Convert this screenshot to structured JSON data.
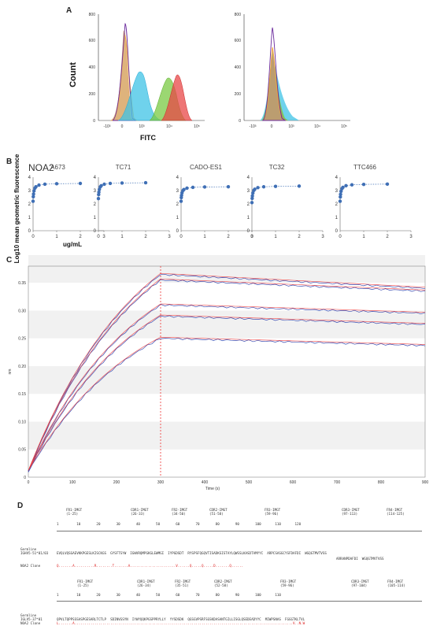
{
  "panel_labels": {
    "a": "A",
    "b": "B",
    "c": "C",
    "d": "D"
  },
  "panel_a": {
    "ylabel": "Count",
    "xlabel": "FITC",
    "left": {
      "yticks": [
        "0",
        "200",
        "400",
        "600",
        "800"
      ],
      "xticks": [
        "-10³",
        "0",
        "10³",
        "10⁴",
        "10⁵"
      ]
    },
    "right": {
      "yticks": [
        "0",
        "200",
        "400",
        "600",
        "800"
      ],
      "xticks": [
        "-10³",
        "0",
        "10³",
        "10⁴",
        "10⁵"
      ]
    }
  },
  "panel_b": {
    "antibody": "NOA2",
    "ylabel": "Log10 mean geometric fluorescence",
    "xlabel": "ug/mL",
    "yticks": [
      "0",
      "1",
      "2",
      "3",
      "4"
    ],
    "xticks": [
      "0",
      "1",
      "2",
      "3"
    ]
  },
  "panel_c": {
    "xlabel": "Time (s)",
    "ylabel": "nm",
    "yticks": [
      "0",
      "0.05",
      "0.10",
      "0.15",
      "0.20",
      "0.25",
      "0.30",
      "0.35"
    ],
    "xticks": [
      "0",
      "100",
      "200",
      "300",
      "400",
      "500",
      "600",
      "700",
      "800",
      "900"
    ]
  },
  "panel_d": {
    "block1": {
      "regions": [
        "FR1-IMGT\n(1-25)",
        "CDR1-IMGT\n(26-33)",
        "FR2-IMGT\n(34-50)",
        "CDR2-IMGT\n(51-58)",
        "FR3-IMGT\n(59-96)",
        "CDR3-IMGT\n(97-113)",
        "FR4-IMGT\n(114-125)"
      ],
      "ruler": "1         10        20        30        40        50        60        70        80        90        100       110       120",
      "germline_label": "Germline\nIGHV5-51*01/03",
      "germline_seq": "EVQLVQSGAEVKKPGESLKISCKGS  GYSFTSYW  IGWVRQMPGKGLEWMGI  IYPGDSDT  RYSPSFQGQVTISADKSISTAYLQWSSLKASDTAMYYC  ARPCSASGCYSFDAFDI  WGQGTMVTVSS",
      "germline_seq2": "ARRANPDAFDI  WGQGTMVTVSS",
      "clone_label": "NOA2 Clone",
      "clone_seq": "Q.......A..........R........T.......A.......................V......Q.....Q.....D.......Q......"
    },
    "block2": {
      "regions": [
        "FR1-IMGT\n(1-25)",
        "CDR1-IMGT\n(26-34)",
        "FR2-IMGT\n(35-51)",
        "CDR2-IMGT\n(52-58)",
        "FR3-IMGT\n(59-96)",
        "CDR3-IMGT\n(97-104)",
        "FR4-IMGT\n(105-114)"
      ],
      "ruler": "1         10        20        30        40        50        60        70        80        90        100       110",
      "germline_label": "Germline\nIGLV5-37*01\nNOA2 Clone",
      "germline_seq": "QPVLTQPPSSSASPGESARLTCTLP  SDINVGSYN  IYWYQQKPGSPPRYLLY  YYSDSDK  QGSGVPSRFSGSKDASANTGILLISGLQSEDEADYYC  MIWPSNAS  FGGGTKLTVL",
      "clone_seq": "L.......A..............................................................................................................V..N.W"
    }
  },
  "colors": {
    "purple": "#6a2a9c",
    "orange": "#f2a43a",
    "cyan": "#3fc3e6",
    "green": "#7ac943",
    "red": "#e84747",
    "tan": "#c7a680",
    "blue_points": "#3f6fb5",
    "sensor_blue": "#3a4db3",
    "fit_red": "#ee4040"
  }
}
